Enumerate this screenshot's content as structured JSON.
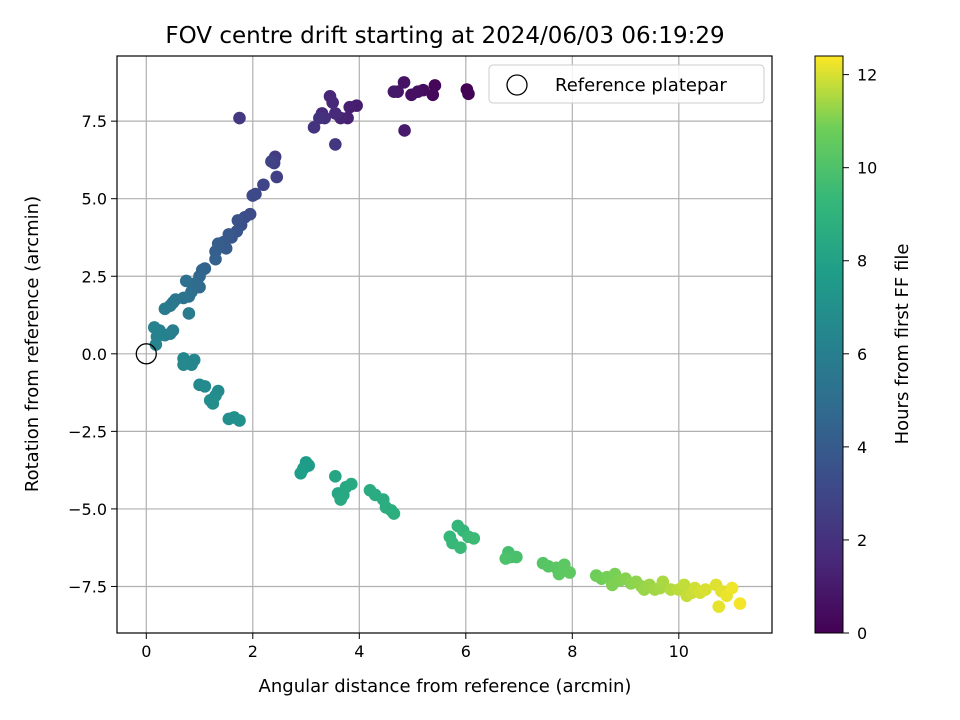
{
  "chart_data": {
    "type": "scatter",
    "title": "FOV centre drift starting at 2024/06/03 06:19:29",
    "xlabel": "Angular distance from reference (arcmin)",
    "ylabel": "Rotation from reference (arcmin)",
    "colorbar_label": "Hours from first FF file",
    "colormap": "viridis",
    "xlim": [
      -0.55,
      11.75
    ],
    "ylim": [
      -9.0,
      9.6
    ],
    "clim": [
      0,
      12.4
    ],
    "x_ticks": [
      0,
      2,
      4,
      6,
      8,
      10
    ],
    "x_tick_labels": [
      "0",
      "2",
      "4",
      "6",
      "8",
      "10"
    ],
    "y_ticks": [
      -7.5,
      -5.0,
      -2.5,
      0.0,
      2.5,
      5.0,
      7.5
    ],
    "y_tick_labels": [
      "−7.5",
      "−5.0",
      "−2.5",
      "0.0",
      "2.5",
      "5.0",
      "7.5"
    ],
    "colorbar_ticks": [
      0,
      2,
      4,
      6,
      8,
      10,
      12
    ],
    "colorbar_tick_labels": [
      "0",
      "2",
      "4",
      "6",
      "8",
      "10",
      "12"
    ],
    "grid": true,
    "legend": {
      "position": "top-right",
      "entries": [
        "Reference platepar"
      ]
    },
    "reference_point": {
      "name": "Reference platepar",
      "x": 0.0,
      "y": 0.0,
      "marker": "open-circle"
    },
    "series": [
      {
        "name": "",
        "points": [
          [
            6.02,
            8.52,
            0.0
          ],
          [
            6.05,
            8.38,
            0.1
          ],
          [
            5.42,
            8.65,
            0.2
          ],
          [
            5.38,
            8.35,
            0.3
          ],
          [
            5.2,
            8.5,
            0.4
          ],
          [
            5.1,
            8.45,
            0.5
          ],
          [
            4.98,
            8.35,
            0.6
          ],
          [
            4.84,
            8.75,
            0.7
          ],
          [
            4.72,
            8.45,
            0.8
          ],
          [
            4.65,
            8.45,
            0.9
          ],
          [
            4.85,
            7.2,
            1.0
          ],
          [
            3.95,
            8.0,
            1.1
          ],
          [
            3.82,
            7.95,
            1.2
          ],
          [
            3.78,
            7.6,
            1.3
          ],
          [
            3.65,
            7.6,
            1.4
          ],
          [
            3.45,
            8.3,
            1.5
          ],
          [
            3.5,
            8.1,
            1.6
          ],
          [
            3.55,
            7.75,
            1.7
          ],
          [
            3.3,
            7.75,
            1.8
          ],
          [
            3.35,
            7.6,
            1.9
          ],
          [
            3.25,
            7.6,
            2.0
          ],
          [
            3.15,
            7.3,
            2.1
          ],
          [
            3.55,
            6.75,
            2.2
          ],
          [
            1.75,
            7.6,
            2.35
          ],
          [
            2.42,
            6.35,
            2.5
          ],
          [
            2.4,
            6.15,
            2.6
          ],
          [
            2.45,
            5.7,
            2.7
          ],
          [
            2.35,
            6.2,
            2.8
          ],
          [
            2.2,
            5.45,
            2.9
          ],
          [
            2.05,
            5.15,
            3.0
          ],
          [
            2.0,
            5.1,
            3.1
          ],
          [
            1.95,
            4.5,
            3.2
          ],
          [
            1.85,
            4.4,
            3.3
          ],
          [
            1.78,
            4.15,
            3.4
          ],
          [
            1.72,
            4.3,
            3.5
          ],
          [
            1.7,
            3.95,
            3.6
          ],
          [
            1.6,
            3.75,
            3.7
          ],
          [
            1.55,
            3.85,
            3.8
          ],
          [
            1.45,
            3.6,
            3.9
          ],
          [
            1.5,
            3.4,
            4.0
          ],
          [
            1.35,
            3.55,
            4.1
          ],
          [
            1.3,
            3.3,
            4.2
          ],
          [
            1.3,
            3.05,
            4.3
          ],
          [
            1.1,
            2.75,
            4.4
          ],
          [
            1.05,
            2.7,
            4.5
          ],
          [
            1.0,
            2.5,
            4.6
          ],
          [
            0.95,
            2.3,
            4.7
          ],
          [
            1.0,
            2.15,
            4.8
          ],
          [
            0.9,
            2.25,
            4.9
          ],
          [
            0.85,
            2.0,
            5.0
          ],
          [
            0.75,
            2.35,
            5.1
          ],
          [
            0.8,
            1.85,
            5.2
          ],
          [
            0.7,
            1.8,
            5.3
          ],
          [
            0.55,
            1.75,
            5.4
          ],
          [
            0.5,
            1.65,
            5.5
          ],
          [
            0.45,
            1.55,
            5.6
          ],
          [
            0.35,
            1.45,
            5.7
          ],
          [
            0.8,
            1.3,
            5.8
          ],
          [
            0.5,
            0.75,
            5.9
          ],
          [
            0.45,
            0.65,
            6.0
          ],
          [
            0.35,
            0.6,
            6.1
          ],
          [
            0.25,
            0.75,
            6.15
          ],
          [
            0.15,
            0.85,
            6.2
          ],
          [
            0.2,
            0.55,
            6.25
          ],
          [
            0.18,
            0.3,
            6.3
          ],
          [
            0.9,
            -0.2,
            6.4
          ],
          [
            0.85,
            -0.35,
            6.45
          ],
          [
            0.7,
            -0.15,
            6.5
          ],
          [
            0.7,
            -0.35,
            6.55
          ],
          [
            1.0,
            -1.0,
            6.6
          ],
          [
            1.1,
            -1.05,
            6.65
          ],
          [
            1.35,
            -1.2,
            6.7
          ],
          [
            1.3,
            -1.35,
            6.75
          ],
          [
            1.2,
            -1.5,
            6.8
          ],
          [
            1.25,
            -1.6,
            6.85
          ],
          [
            1.55,
            -2.1,
            6.9
          ],
          [
            1.65,
            -2.05,
            6.95
          ],
          [
            1.75,
            -2.15,
            7.0
          ],
          [
            3.05,
            -3.6,
            7.6
          ],
          [
            3.0,
            -3.5,
            7.65
          ],
          [
            2.95,
            -3.7,
            7.7
          ],
          [
            2.9,
            -3.85,
            7.75
          ],
          [
            3.55,
            -3.95,
            8.2
          ],
          [
            3.6,
            -4.5,
            8.25
          ],
          [
            3.7,
            -4.55,
            8.3
          ],
          [
            3.65,
            -4.7,
            8.35
          ],
          [
            3.75,
            -4.3,
            8.4
          ],
          [
            3.85,
            -4.2,
            8.45
          ],
          [
            4.2,
            -4.4,
            8.5
          ],
          [
            4.3,
            -4.55,
            8.55
          ],
          [
            4.45,
            -4.7,
            8.6
          ],
          [
            4.5,
            -4.95,
            8.65
          ],
          [
            4.6,
            -5.05,
            8.7
          ],
          [
            4.65,
            -5.15,
            8.75
          ],
          [
            5.85,
            -5.55,
            9.2
          ],
          [
            5.95,
            -5.7,
            9.25
          ],
          [
            5.7,
            -5.9,
            9.3
          ],
          [
            5.75,
            -6.1,
            9.35
          ],
          [
            5.9,
            -6.25,
            9.4
          ],
          [
            6.05,
            -5.9,
            9.45
          ],
          [
            6.15,
            -5.95,
            9.5
          ],
          [
            6.8,
            -6.4,
            9.8
          ],
          [
            6.85,
            -6.55,
            9.85
          ],
          [
            6.95,
            -6.55,
            9.9
          ],
          [
            6.75,
            -6.6,
            9.95
          ],
          [
            7.45,
            -6.75,
            10.2
          ],
          [
            7.55,
            -6.85,
            10.25
          ],
          [
            7.7,
            -6.9,
            10.3
          ],
          [
            7.85,
            -6.8,
            10.35
          ],
          [
            7.75,
            -7.1,
            10.4
          ],
          [
            7.95,
            -7.05,
            10.45
          ],
          [
            8.45,
            -7.15,
            10.8
          ],
          [
            8.55,
            -7.25,
            10.85
          ],
          [
            8.65,
            -7.2,
            10.9
          ],
          [
            8.8,
            -7.1,
            10.95
          ],
          [
            8.75,
            -7.45,
            11.0
          ],
          [
            8.9,
            -7.3,
            11.05
          ],
          [
            9.0,
            -7.25,
            11.1
          ],
          [
            9.1,
            -7.4,
            11.15
          ],
          [
            9.2,
            -7.35,
            11.2
          ],
          [
            9.3,
            -7.5,
            11.25
          ],
          [
            9.35,
            -7.6,
            11.3
          ],
          [
            9.45,
            -7.45,
            11.35
          ],
          [
            9.55,
            -7.6,
            11.4
          ],
          [
            9.65,
            -7.55,
            11.45
          ],
          [
            9.7,
            -7.35,
            11.5
          ],
          [
            9.85,
            -7.6,
            11.6
          ],
          [
            10.0,
            -7.6,
            11.7
          ],
          [
            10.1,
            -7.45,
            11.75
          ],
          [
            10.15,
            -7.8,
            11.8
          ],
          [
            10.25,
            -7.7,
            11.85
          ],
          [
            10.3,
            -7.55,
            11.9
          ],
          [
            10.4,
            -7.7,
            11.95
          ],
          [
            10.5,
            -7.6,
            12.0
          ],
          [
            10.7,
            -7.45,
            12.05
          ],
          [
            10.8,
            -7.65,
            12.1
          ],
          [
            10.75,
            -8.15,
            12.15
          ],
          [
            10.9,
            -7.8,
            12.2
          ],
          [
            11.0,
            -7.55,
            12.25
          ],
          [
            11.15,
            -8.05,
            12.3
          ]
        ]
      }
    ]
  }
}
